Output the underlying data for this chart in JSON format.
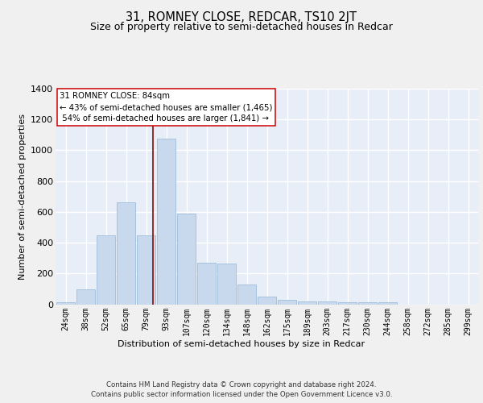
{
  "title": "31, ROMNEY CLOSE, REDCAR, TS10 2JT",
  "subtitle": "Size of property relative to semi-detached houses in Redcar",
  "xlabel": "Distribution of semi-detached houses by size in Redcar",
  "ylabel": "Number of semi-detached properties",
  "categories": [
    "24sqm",
    "38sqm",
    "52sqm",
    "65sqm",
    "79sqm",
    "93sqm",
    "107sqm",
    "120sqm",
    "134sqm",
    "148sqm",
    "162sqm",
    "175sqm",
    "189sqm",
    "203sqm",
    "217sqm",
    "230sqm",
    "244sqm",
    "258sqm",
    "272sqm",
    "285sqm",
    "299sqm"
  ],
  "values": [
    15,
    95,
    450,
    660,
    450,
    1075,
    590,
    270,
    265,
    130,
    50,
    30,
    20,
    20,
    15,
    15,
    15,
    0,
    0,
    0,
    0
  ],
  "bar_color": "#c8d9ee",
  "bar_edge_color": "#a0bcd8",
  "pct_smaller": 43,
  "pct_smaller_count": "1,465",
  "pct_larger": 54,
  "pct_larger_count": "1,841",
  "vline_color": "#8b1a1a",
  "footer": "Contains HM Land Registry data © Crown copyright and database right 2024.\nContains public sector information licensed under the Open Government Licence v3.0.",
  "ylim": [
    0,
    1400
  ],
  "yticks": [
    0,
    200,
    400,
    600,
    800,
    1000,
    1200,
    1400
  ],
  "bg_color": "#e8eef8",
  "grid_color": "#ffffff",
  "title_fontsize": 10.5,
  "subtitle_fontsize": 9
}
